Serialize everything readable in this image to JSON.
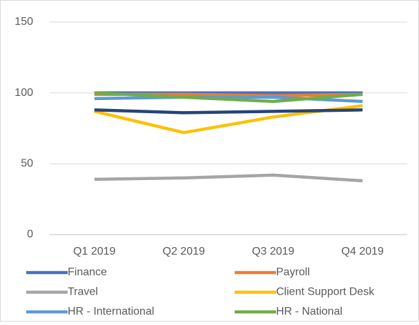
{
  "chart_data": {
    "type": "line",
    "categories": [
      "Q1 2019",
      "Q2 2019",
      "Q3 2019",
      "Q4 2019"
    ],
    "series": [
      {
        "name": "Finance",
        "color": "#4472c4",
        "values": [
          100,
          100,
          100,
          100
        ]
      },
      {
        "name": "Payroll",
        "color": "#ed7d31",
        "values": [
          99,
          99,
          98,
          99
        ]
      },
      {
        "name": "Travel",
        "color": "#a5a5a5",
        "values": [
          39,
          40,
          42,
          38
        ]
      },
      {
        "name": "Client Support Desk",
        "color": "#ffc000",
        "values": [
          87,
          72,
          83,
          91
        ]
      },
      {
        "name": "HR - International",
        "color": "#5b9bd5",
        "values": [
          96,
          97,
          97,
          94
        ]
      },
      {
        "name": "HR - National",
        "color": "#70ad47",
        "values": [
          100,
          97,
          94,
          99
        ]
      },
      {
        "color": "#264478",
        "values": [
          88,
          86,
          87,
          88
        ]
      }
    ],
    "ylim": [
      0,
      150
    ],
    "yticks": [
      0,
      50,
      100,
      150
    ],
    "grid": true,
    "legend": "bottom"
  }
}
